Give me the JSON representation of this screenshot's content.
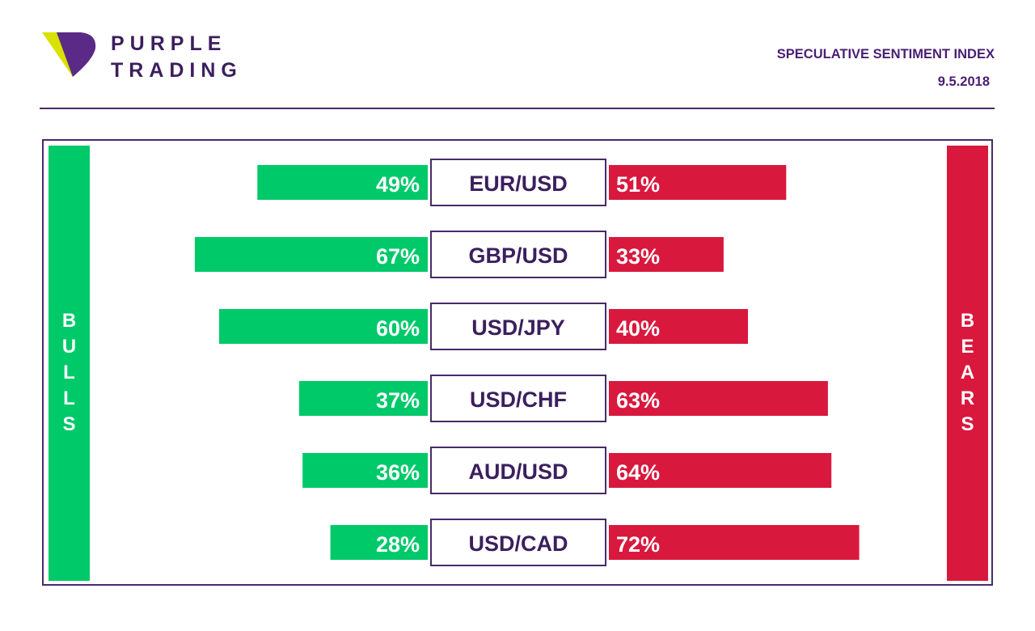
{
  "brand": {
    "line1": "PURPLE",
    "line2": "TRADING"
  },
  "header": {
    "title": "SPECULATIVE SENTIMENT INDEX",
    "date": "9.5.2018"
  },
  "side_labels": {
    "bulls": "BULLS",
    "bears": "BEARS"
  },
  "colors": {
    "bulls": "#00c96a",
    "bears": "#d9183d",
    "accent": "#4a1e73",
    "logo_yellow": "#d8e100"
  },
  "chart_data": {
    "type": "bar",
    "orientation": "diverging-horizontal",
    "categories": [
      "EUR/USD",
      "GBP/USD",
      "USD/JPY",
      "USD/CHF",
      "AUD/USD",
      "USD/CAD"
    ],
    "series": [
      {
        "name": "BULLS",
        "values": [
          49,
          67,
          60,
          37,
          36,
          28
        ]
      },
      {
        "name": "BEARS",
        "values": [
          51,
          33,
          40,
          63,
          64,
          72
        ]
      }
    ],
    "unit": "%"
  }
}
